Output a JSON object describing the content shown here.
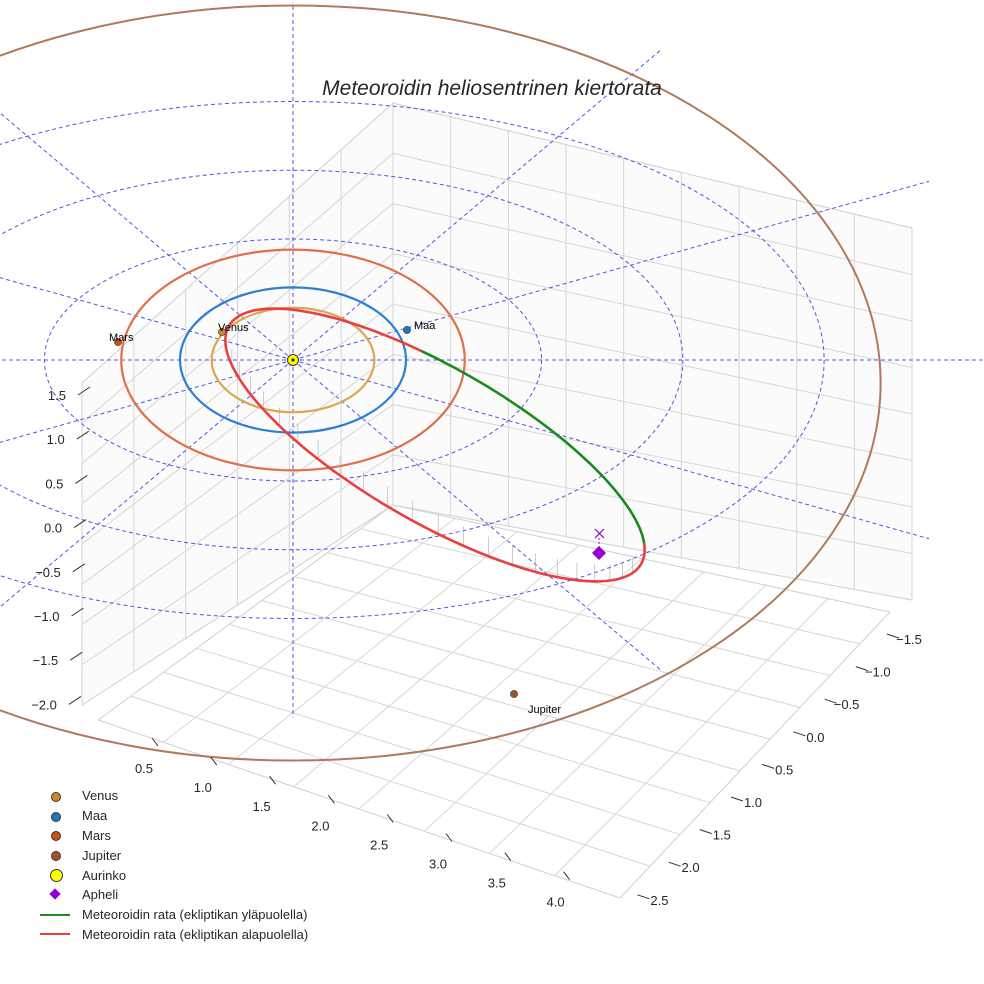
{
  "chart_data": {
    "type": "line",
    "projection": "3d",
    "title": "Meteoroidin heliosentrinen kiertorata",
    "x_ticks": [
      "0.5",
      "1.0",
      "1.5",
      "2.0",
      "2.5",
      "3.0",
      "3.5",
      "4.0"
    ],
    "y_ticks": [
      "−1.5",
      "−1.0",
      "−0.5",
      "0.0",
      "0.5",
      "1.0",
      "1.5",
      "2.0",
      "2.5"
    ],
    "z_ticks": [
      "1.5",
      "1.0",
      "0.5",
      "0.0",
      "−0.5",
      "−1.0",
      "−1.5",
      "−2.0"
    ],
    "grid": true,
    "legend_position": "bottom-left",
    "planets": [
      {
        "name": "Venus",
        "label": "Venus",
        "radius_au": 0.72,
        "color": "#c98a2e",
        "orbit_color": "#d9a850"
      },
      {
        "name": "Maa",
        "label": "Maa",
        "radius_au": 1.0,
        "color": "#1f77b4",
        "orbit_color": "#2f7fd0"
      },
      {
        "name": "Mars",
        "label": "Mars",
        "radius_au": 1.52,
        "color": "#c9501a",
        "orbit_color": "#e0704a"
      },
      {
        "name": "Jupiter",
        "label": "Jupiter",
        "radius_au": 5.2,
        "color": "#a0522d",
        "orbit_color": "#b07a5a"
      }
    ],
    "sun": {
      "name": "Aurinko",
      "color": "#ffff00"
    },
    "aphelion": {
      "name": "Apheli",
      "color": "#9400d3"
    },
    "series": [
      {
        "name": "Meteoroidin rata (ekliptikan yläpuolella)",
        "color": "#1a8a1a"
      },
      {
        "name": "Meteoroidin rata (ekliptikan alapuolella)",
        "color": "#e84040"
      }
    ],
    "reference_grid_color": "#5555dd"
  },
  "legend": {
    "items": [
      {
        "label": "Venus",
        "kind": "circle",
        "color": "#c98a2e"
      },
      {
        "label": "Maa",
        "kind": "circle",
        "color": "#1f77b4"
      },
      {
        "label": "Mars",
        "kind": "circle",
        "color": "#c9501a"
      },
      {
        "label": "Jupiter",
        "kind": "circle",
        "color": "#a0522d"
      },
      {
        "label": "Aurinko",
        "kind": "circle-big",
        "color": "#ffff00"
      },
      {
        "label": "Apheli",
        "kind": "diamond",
        "color": "#9400d3"
      },
      {
        "label": "Meteoroidin rata (ekliptikan yläpuolella)",
        "kind": "line",
        "color": "#1a8a1a"
      },
      {
        "label": "Meteoroidin rata (ekliptikan alapuolella)",
        "kind": "line",
        "color": "#e84040"
      }
    ]
  }
}
